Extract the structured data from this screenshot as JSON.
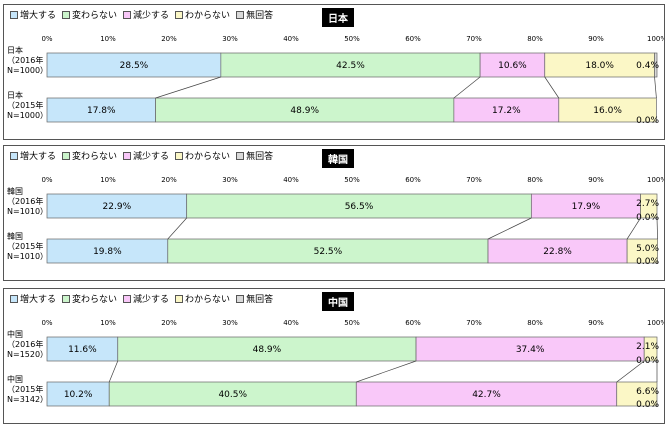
{
  "legend": {
    "items": [
      {
        "label": "増大する",
        "color": "#c6e6fa"
      },
      {
        "label": "変わらない",
        "color": "#ccf5cc"
      },
      {
        "label": "減少する",
        "color": "#f9c8f9"
      },
      {
        "label": "わからない",
        "color": "#fbf7c6"
      },
      {
        "label": "無回答",
        "color": "#d9d9d9"
      }
    ]
  },
  "chart_data": [
    {
      "type": "bar",
      "stacked": "percent",
      "orientation": "horizontal",
      "title": "日本",
      "xticks": [
        "0%",
        "10%",
        "20%",
        "30%",
        "40%",
        "50%",
        "60%",
        "70%",
        "80%",
        "90%",
        "100%"
      ],
      "xlim": [
        0,
        100
      ],
      "categories": [
        "日本\n（2016年\nN=1000）",
        "日本\n（2015年\nN=1000）"
      ],
      "series": [
        {
          "name": "増大する",
          "values": [
            28.5,
            17.8
          ]
        },
        {
          "name": "変わらない",
          "values": [
            42.5,
            48.9
          ]
        },
        {
          "name": "減少する",
          "values": [
            10.6,
            17.2
          ]
        },
        {
          "name": "わからない",
          "values": [
            18.0,
            16.0
          ]
        },
        {
          "name": "無回答",
          "values": [
            0.4,
            0.0
          ]
        }
      ],
      "labels": [
        [
          "28.5%",
          "42.5%",
          "10.6%",
          "18.0%",
          "0.4%"
        ],
        [
          "17.8%",
          "48.9%",
          "17.2%",
          "16.0%",
          "0.0%"
        ]
      ]
    },
    {
      "type": "bar",
      "stacked": "percent",
      "orientation": "horizontal",
      "title": "韓国",
      "xticks": [
        "0%",
        "10%",
        "20%",
        "30%",
        "40%",
        "50%",
        "60%",
        "70%",
        "80%",
        "90%",
        "100%"
      ],
      "xlim": [
        0,
        100
      ],
      "categories": [
        "韓国\n（2016年\nN=1010）",
        "韓国\n（2015年\nN=1010）"
      ],
      "series": [
        {
          "name": "増大する",
          "values": [
            22.9,
            19.8
          ]
        },
        {
          "name": "変わらない",
          "values": [
            56.5,
            52.5
          ]
        },
        {
          "name": "減少する",
          "values": [
            17.9,
            22.8
          ]
        },
        {
          "name": "わからない",
          "values": [
            2.7,
            5.0
          ]
        },
        {
          "name": "無回答",
          "values": [
            0.0,
            0.0
          ]
        }
      ],
      "labels": [
        [
          "22.9%",
          "56.5%",
          "17.9%",
          "2.7%",
          "0.0%"
        ],
        [
          "19.8%",
          "52.5%",
          "22.8%",
          "5.0%",
          "0.0%"
        ]
      ]
    },
    {
      "type": "bar",
      "stacked": "percent",
      "orientation": "horizontal",
      "title": "中国",
      "xticks": [
        "0%",
        "10%",
        "20%",
        "30%",
        "40%",
        "50%",
        "60%",
        "70%",
        "80%",
        "90%",
        "100%"
      ],
      "xlim": [
        0,
        100
      ],
      "categories": [
        "中国\n（2016年\nN=1520）",
        "中国\n（2015年\nN=3142）"
      ],
      "series": [
        {
          "name": "増大する",
          "values": [
            11.6,
            10.2
          ]
        },
        {
          "name": "変わらない",
          "values": [
            48.9,
            40.5
          ]
        },
        {
          "name": "減少する",
          "values": [
            37.4,
            42.7
          ]
        },
        {
          "name": "わからない",
          "values": [
            2.1,
            6.6
          ]
        },
        {
          "name": "無回答",
          "values": [
            0.0,
            0.0
          ]
        }
      ],
      "labels": [
        [
          "11.6%",
          "48.9%",
          "37.4%",
          "2.1%",
          "0.0%"
        ],
        [
          "10.2%",
          "40.5%",
          "42.7%",
          "6.6%",
          "0.0%"
        ]
      ]
    }
  ]
}
